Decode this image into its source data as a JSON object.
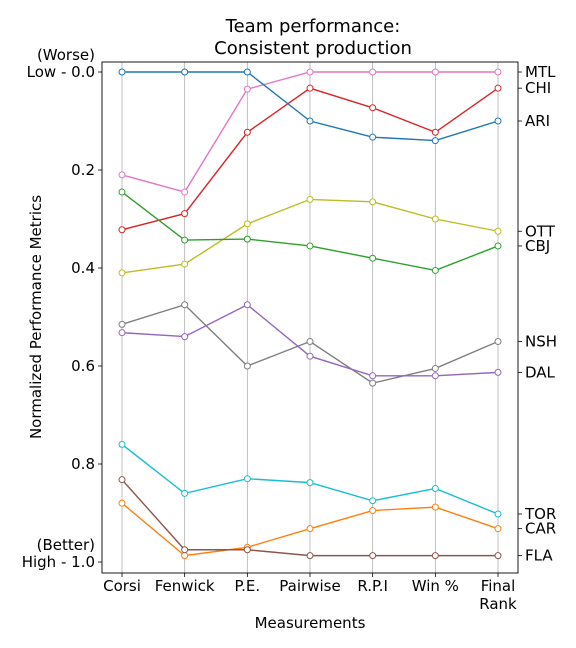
{
  "chart_data": {
    "type": "line",
    "title_lines": [
      "Team performance:",
      "Consistent production"
    ],
    "xlabel": "Measurements",
    "ylabel": "Normalized Performance Metrics",
    "categories": [
      [
        "Corsi"
      ],
      [
        "Fenwick"
      ],
      [
        "P.E."
      ],
      [
        "Pairwise"
      ],
      [
        "R.P.I"
      ],
      [
        "Win %"
      ],
      [
        "Final",
        "Rank"
      ]
    ],
    "ylim": [
      0.0,
      1.0
    ],
    "y_inverted": true,
    "yticks": [
      {
        "value": 0.0,
        "lines": [
          "(Worse)",
          "Low - 0.0"
        ]
      },
      {
        "value": 0.2,
        "lines": [
          "0.2"
        ]
      },
      {
        "value": 0.4,
        "lines": [
          "0.4"
        ]
      },
      {
        "value": 0.6,
        "lines": [
          "0.6"
        ]
      },
      {
        "value": 0.8,
        "lines": [
          "0.8"
        ]
      },
      {
        "value": 1.0,
        "lines": [
          "(Better)",
          "High - 1.0"
        ]
      }
    ],
    "grid": "x-only",
    "series": [
      {
        "name": "MTL",
        "color": "#e377c2",
        "values": [
          0.21,
          0.245,
          0.035,
          0.0,
          0.0,
          0.0,
          0.0
        ]
      },
      {
        "name": "CHI",
        "color": "#d62728",
        "values": [
          0.322,
          0.289,
          0.123,
          0.033,
          0.073,
          0.123,
          0.033
        ]
      },
      {
        "name": "ARI",
        "color": "#1f77b4",
        "values": [
          0.0,
          0.0,
          0.0,
          0.1,
          0.133,
          0.14,
          0.1
        ]
      },
      {
        "name": "OTT",
        "color": "#bcbd22",
        "values": [
          0.41,
          0.392,
          0.31,
          0.26,
          0.265,
          0.3,
          0.325
        ]
      },
      {
        "name": "CBJ",
        "color": "#2ca02c",
        "values": [
          0.245,
          0.343,
          0.341,
          0.355,
          0.38,
          0.405,
          0.355
        ]
      },
      {
        "name": "NSH",
        "color": "#7f7f7f",
        "values": [
          0.515,
          0.475,
          0.6,
          0.55,
          0.635,
          0.605,
          0.55
        ]
      },
      {
        "name": "DAL",
        "color": "#9467bd",
        "values": [
          0.532,
          0.54,
          0.475,
          0.58,
          0.62,
          0.62,
          0.613
        ]
      },
      {
        "name": "TOR",
        "color": "#17becf",
        "values": [
          0.76,
          0.86,
          0.83,
          0.838,
          0.875,
          0.85,
          0.902
        ]
      },
      {
        "name": "CAR",
        "color": "#ff7f0e",
        "values": [
          0.88,
          0.987,
          0.97,
          0.932,
          0.895,
          0.888,
          0.932
        ]
      },
      {
        "name": "FLA",
        "color": "#8c564b",
        "values": [
          0.832,
          0.975,
          0.975,
          0.987,
          0.987,
          0.987,
          0.987
        ]
      }
    ],
    "right_labels": [
      {
        "text": "MTL",
        "value": 0.0
      },
      {
        "text": "CHI",
        "value": 0.033
      },
      {
        "text": "ARI",
        "value": 0.1
      },
      {
        "text": "OTT",
        "value": 0.325
      },
      {
        "text": "CBJ",
        "value": 0.355
      },
      {
        "text": "NSH",
        "value": 0.55
      },
      {
        "text": "DAL",
        "value": 0.613
      },
      {
        "text": "TOR",
        "value": 0.902
      },
      {
        "text": "CAR",
        "value": 0.932
      },
      {
        "text": "FLA",
        "value": 0.987
      }
    ]
  }
}
